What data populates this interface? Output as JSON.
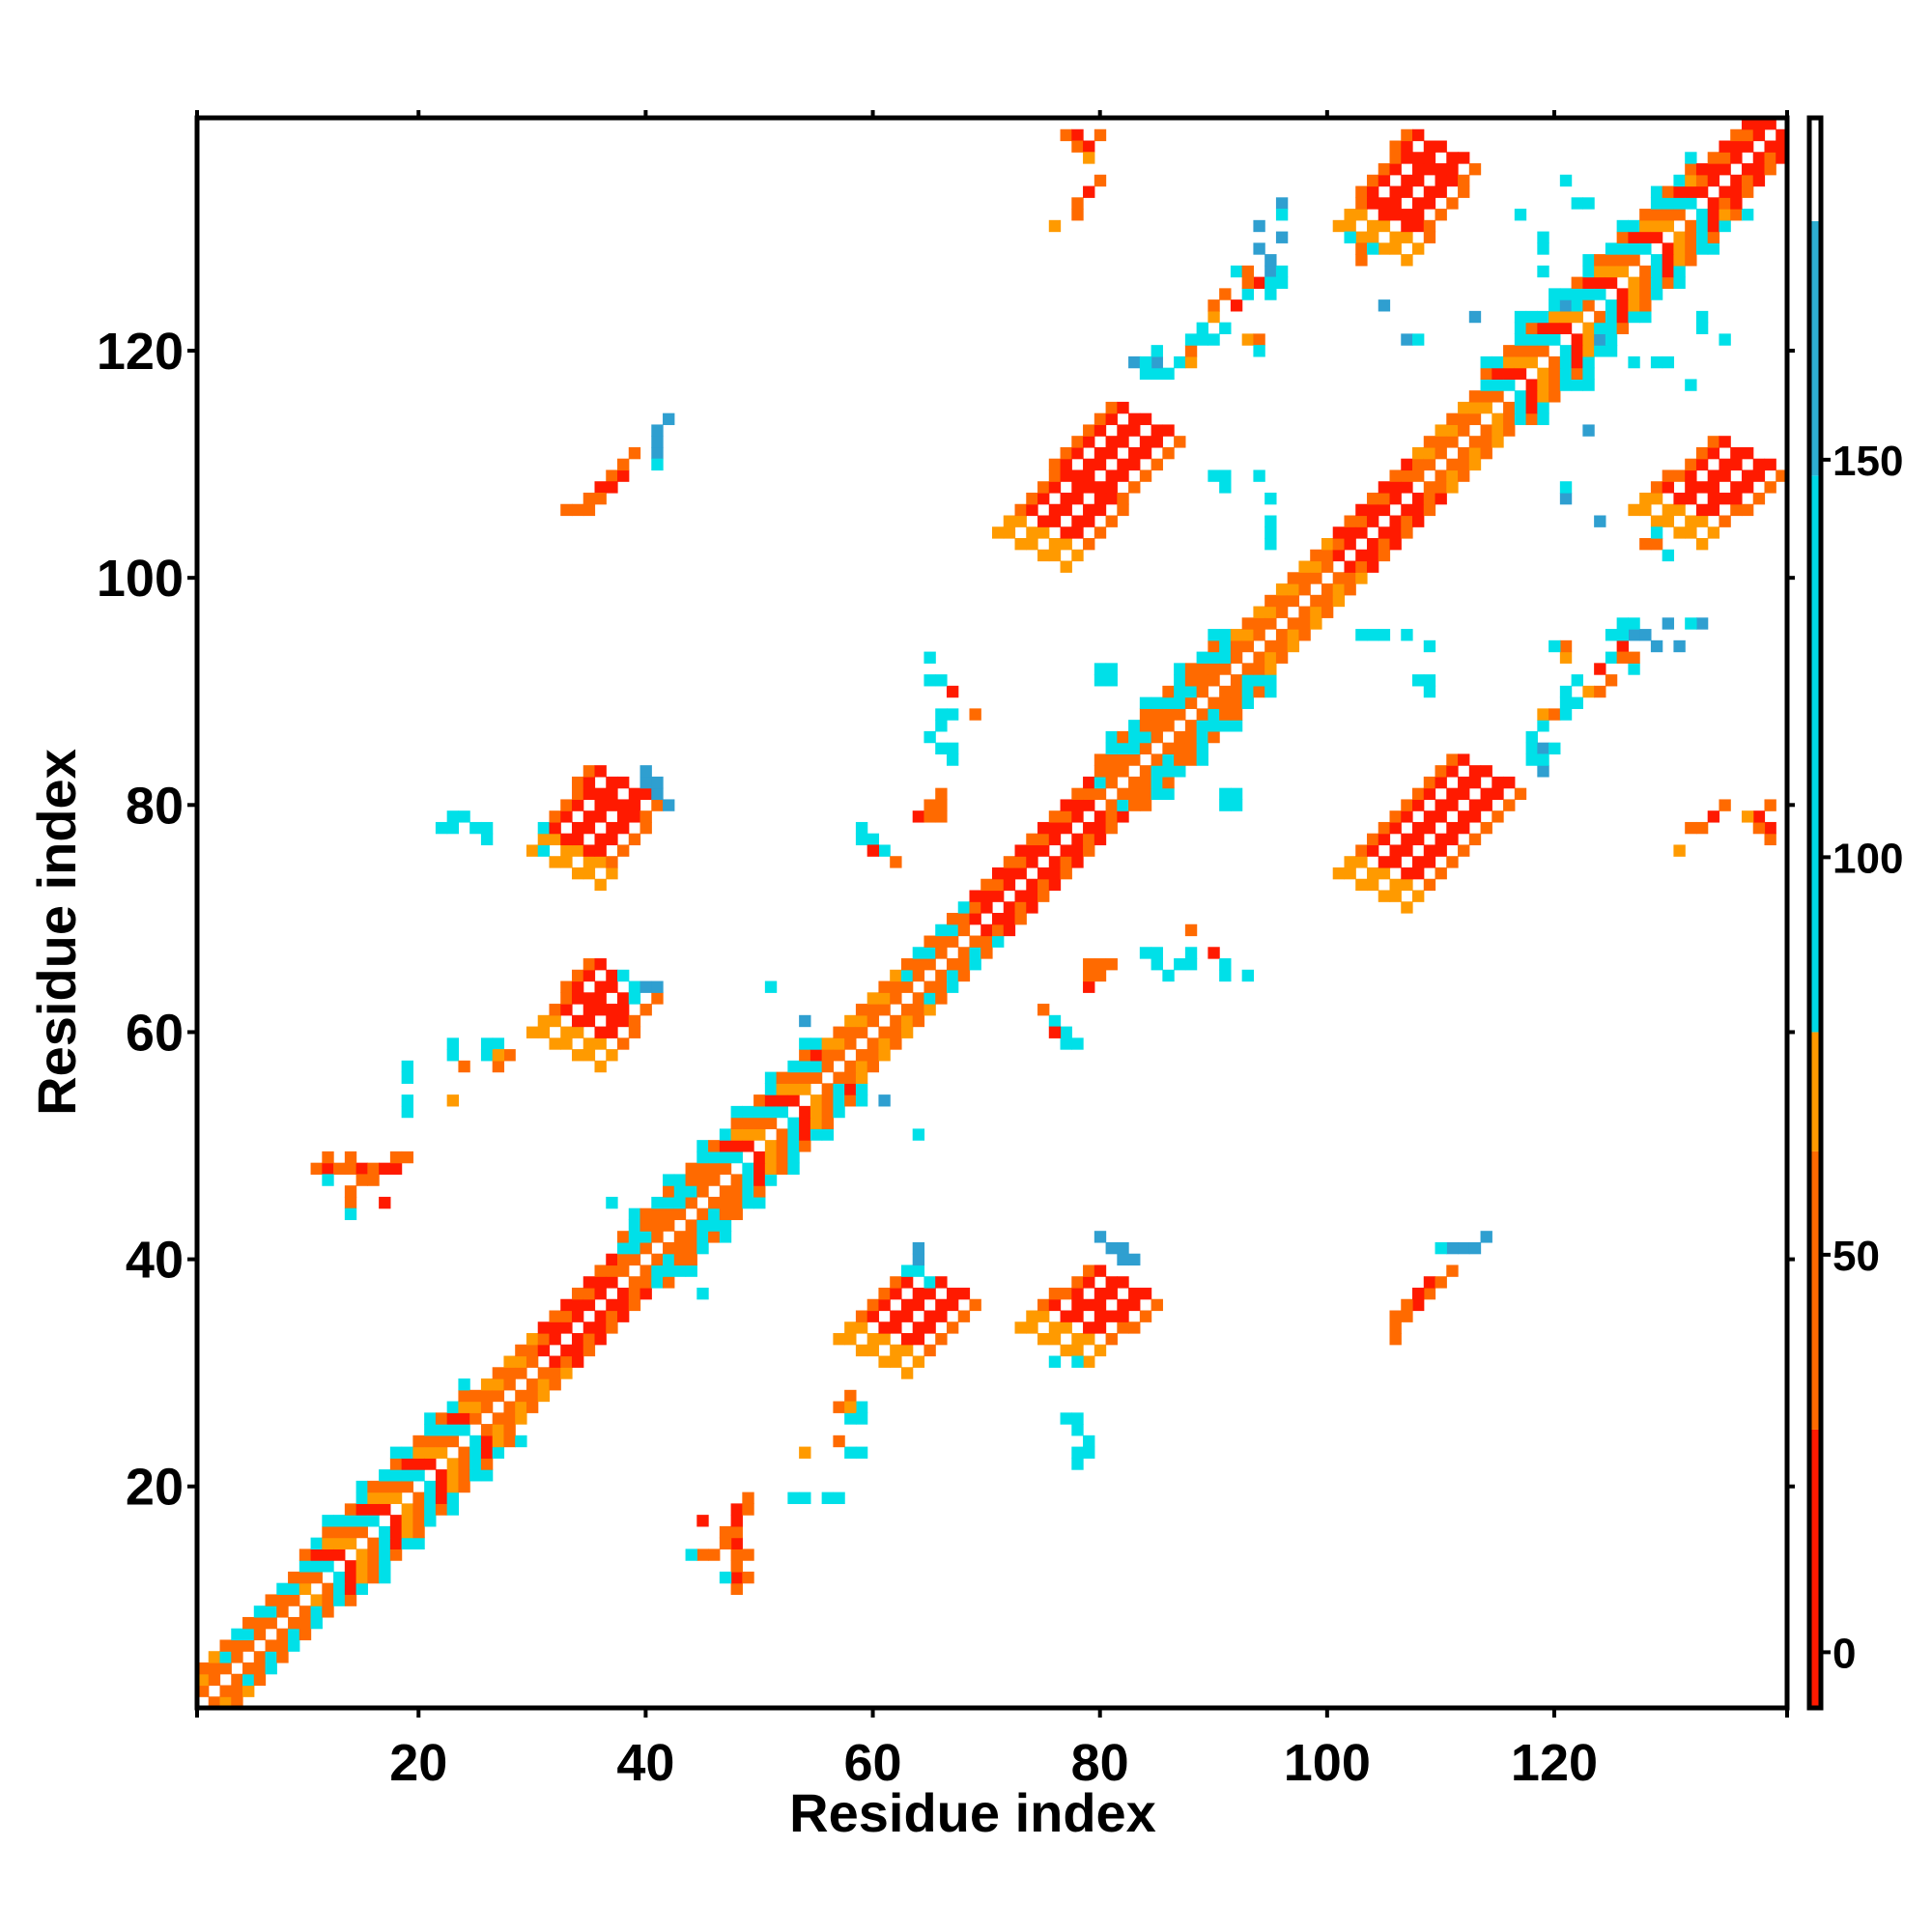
{
  "chart_data": {
    "type": "heatmap",
    "title": "",
    "xlabel": "Residue index",
    "ylabel": "Residue index",
    "xlim": [
      1,
      140
    ],
    "ylim": [
      1,
      140
    ],
    "x_ticks": [
      20,
      40,
      60,
      80,
      100,
      120
    ],
    "y_ticks": [
      20,
      40,
      60,
      80,
      100,
      120
    ],
    "grid": false,
    "diagonal_mirror": true,
    "colorbar": {
      "ticks": [
        0,
        50,
        100,
        150
      ],
      "range": [
        -7,
        193
      ],
      "bands": [
        {
          "from": -7,
          "to": 28,
          "color": "#ff1a00"
        },
        {
          "from": 28,
          "to": 63,
          "color": "#ff6a00"
        },
        {
          "from": 63,
          "to": 78,
          "color": "#ff9a00"
        },
        {
          "from": 78,
          "to": 148,
          "color": "#00d7e6"
        },
        {
          "from": 148,
          "to": 180,
          "color": "#2eaed1"
        },
        {
          "from": 180,
          "to": 193,
          "color": "#ffffff"
        }
      ]
    },
    "color_classes": {
      "red": "#ff1a00",
      "orange": "#ff6a00",
      "amber": "#ff9a00",
      "cyan": "#00e0e8",
      "blue": "#2f9fd0"
    },
    "diagonal_band": {
      "segments": [
        {
          "from": 1,
          "to": 3,
          "pattern": "orange"
        },
        {
          "from": 3,
          "to": 10,
          "pattern": "orange-cyan"
        },
        {
          "from": 10,
          "to": 25,
          "pattern": "mixed"
        },
        {
          "from": 25,
          "to": 31,
          "pattern": "orange"
        },
        {
          "from": 31,
          "to": 38,
          "pattern": "orange-red"
        },
        {
          "from": 38,
          "to": 47,
          "pattern": "cyan-orange"
        },
        {
          "from": 47,
          "to": 56,
          "pattern": "mixed"
        },
        {
          "from": 56,
          "to": 63,
          "pattern": "orange"
        },
        {
          "from": 63,
          "to": 69,
          "pattern": "orange-cyan"
        },
        {
          "from": 69,
          "to": 80,
          "pattern": "orange-red"
        },
        {
          "from": 80,
          "to": 92,
          "pattern": "cyan-orange"
        },
        {
          "from": 92,
          "to": 101,
          "pattern": "orange"
        },
        {
          "from": 101,
          "to": 108,
          "pattern": "orange-red"
        },
        {
          "from": 108,
          "to": 114,
          "pattern": "orange"
        },
        {
          "from": 114,
          "to": 133,
          "pattern": "mixed"
        },
        {
          "from": 133,
          "to": 140,
          "pattern": "orange-red"
        }
      ]
    },
    "patches": [
      {
        "x": 33,
        "y": 75,
        "x2": 38,
        "y2": 82,
        "direction": "parallel",
        "width": 3,
        "start_color": "amber",
        "fill": "red",
        "edge": "orange"
      },
      {
        "x": 33,
        "y": 59,
        "x2": 38,
        "y2": 65,
        "direction": "parallel",
        "width": 3,
        "start_color": "amber",
        "fill": "red",
        "edge": "orange"
      },
      {
        "x": 60,
        "y": 32,
        "x2": 66,
        "y2": 38,
        "direction": "parallel",
        "width": 3,
        "start_color": "amber",
        "fill": "red",
        "edge": "orange"
      },
      {
        "x": 76,
        "y": 33,
        "x2": 82,
        "y2": 38,
        "direction": "parallel",
        "width": 3,
        "start_color": "amber",
        "fill": "red",
        "edge": "orange"
      },
      {
        "x": 74,
        "y": 103,
        "x2": 84,
        "y2": 114,
        "direction": "parallel",
        "width": 3,
        "start_color": "amber",
        "fill": "red",
        "edge": "orange"
      },
      {
        "x": 104,
        "y": 73,
        "x2": 114,
        "y2": 83,
        "direction": "parallel",
        "width": 3,
        "start_color": "amber",
        "fill": "red",
        "edge": "orange"
      },
      {
        "x": 104,
        "y": 130,
        "x2": 110,
        "y2": 138,
        "direction": "parallel",
        "width": 3,
        "start_color": "amber",
        "fill": "red",
        "edge": "orange"
      },
      {
        "x": 130,
        "y": 105,
        "x2": 137,
        "y2": 111,
        "direction": "parallel",
        "width": 3,
        "start_color": "amber",
        "fill": "red",
        "edge": "orange"
      }
    ],
    "cells": [
      [
        11,
        48,
        "orange"
      ],
      [
        12,
        48,
        "red"
      ],
      [
        13,
        48,
        "orange"
      ],
      [
        14,
        48,
        "orange"
      ],
      [
        15,
        48,
        "red"
      ],
      [
        16,
        48,
        "orange"
      ],
      [
        18,
        48,
        "red"
      ],
      [
        19,
        49,
        "orange"
      ],
      [
        14,
        49,
        "orange"
      ],
      [
        16,
        47,
        "orange"
      ],
      [
        14,
        45,
        "orange"
      ],
      [
        17,
        45,
        "red"
      ],
      [
        12,
        47,
        "cyan"
      ],
      [
        14,
        44,
        "cyan"
      ],
      [
        19,
        57,
        "cyan"
      ],
      [
        19,
        54,
        "cyan"
      ],
      [
        19,
        53,
        "cyan"
      ],
      [
        23,
        58,
        "cyan"
      ],
      [
        23,
        59,
        "cyan"
      ],
      [
        24,
        57,
        "orange"
      ],
      [
        23,
        54,
        "amber"
      ],
      [
        26,
        58,
        "cyan"
      ],
      [
        27,
        59,
        "cyan"
      ],
      [
        28,
        58,
        "orange"
      ],
      [
        27,
        57,
        "orange"
      ],
      [
        22,
        78,
        "cyan"
      ],
      [
        23,
        78,
        "cyan"
      ],
      [
        25,
        78,
        "cyan"
      ],
      [
        26,
        77,
        "cyan"
      ],
      [
        31,
        76,
        "cyan"
      ],
      [
        33,
        106,
        "orange"
      ],
      [
        34,
        106,
        "orange"
      ],
      [
        35,
        107,
        "orange"
      ],
      [
        36,
        108,
        "red"
      ],
      [
        37,
        109,
        "orange"
      ],
      [
        41,
        111,
        "blue"
      ],
      [
        41,
        112,
        "blue"
      ],
      [
        41,
        110,
        "cyan"
      ],
      [
        40,
        82,
        "blue"
      ],
      [
        41,
        81,
        "blue"
      ],
      [
        42,
        80,
        "cyan"
      ],
      [
        39,
        64,
        "cyan"
      ],
      [
        40,
        64,
        "blue"
      ],
      [
        41,
        64,
        "blue"
      ],
      [
        38,
        65,
        "cyan"
      ],
      [
        45,
        17,
        "red"
      ],
      [
        48,
        17,
        "red"
      ],
      [
        49,
        18,
        "orange"
      ],
      [
        47,
        15,
        "orange"
      ],
      [
        48,
        14,
        "orange"
      ],
      [
        49,
        14,
        "orange"
      ],
      [
        44,
        14,
        "cyan"
      ],
      [
        46,
        14,
        "orange"
      ],
      [
        47,
        12,
        "cyan"
      ],
      [
        48,
        11,
        "orange"
      ],
      [
        49,
        12,
        "orange"
      ],
      [
        48,
        11,
        "orange"
      ],
      [
        53,
        19,
        "cyan"
      ],
      [
        54,
        19,
        "cyan"
      ],
      [
        56,
        19,
        "cyan"
      ],
      [
        54,
        23,
        "amber"
      ],
      [
        58,
        27,
        "amber"
      ],
      [
        58,
        26,
        "cyan"
      ],
      [
        59,
        26,
        "cyan"
      ],
      [
        57,
        24,
        "orange"
      ],
      [
        58,
        23,
        "cyan"
      ],
      [
        59,
        23,
        "cyan"
      ],
      [
        53,
        52,
        "cyan"
      ],
      [
        61,
        54,
        "blue"
      ],
      [
        64,
        51,
        "cyan"
      ],
      [
        64,
        41,
        "blue"
      ],
      [
        63,
        39,
        "cyan"
      ],
      [
        45,
        37,
        "cyan"
      ],
      [
        41,
        45,
        "cyan"
      ],
      [
        59,
        77,
        "cyan"
      ],
      [
        60,
        77,
        "cyan"
      ],
      [
        61,
        76,
        "orange"
      ],
      [
        62,
        75,
        "orange"
      ],
      [
        64,
        79,
        "orange"
      ],
      [
        65,
        80,
        "orange"
      ],
      [
        65,
        79,
        "orange"
      ],
      [
        66,
        88,
        "cyan"
      ],
      [
        67,
        88,
        "cyan"
      ],
      [
        69,
        88,
        "orange"
      ],
      [
        66,
        85,
        "cyan"
      ],
      [
        67,
        85,
        "cyan"
      ],
      [
        67,
        84,
        "cyan"
      ],
      [
        77,
        139,
        "orange"
      ],
      [
        78,
        139,
        "red"
      ],
      [
        78,
        138,
        "orange"
      ],
      [
        79,
        138,
        "red"
      ],
      [
        80,
        139,
        "orange"
      ],
      [
        79,
        137,
        "amber"
      ],
      [
        76,
        61,
        "cyan"
      ],
      [
        76,
        60,
        "red"
      ],
      [
        77,
        59,
        "cyan"
      ],
      [
        78,
        59,
        "cyan"
      ],
      [
        79,
        64,
        "red"
      ],
      [
        79,
        66,
        "orange"
      ],
      [
        80,
        66,
        "orange"
      ],
      [
        81,
        66,
        "orange"
      ],
      [
        78,
        26,
        "cyan"
      ],
      [
        78,
        25,
        "cyan"
      ],
      [
        79,
        24,
        "cyan"
      ],
      [
        79,
        23,
        "cyan"
      ],
      [
        78,
        31,
        "cyan"
      ],
      [
        80,
        42,
        "blue"
      ],
      [
        81,
        41,
        "blue"
      ],
      [
        82,
        41,
        "blue"
      ],
      [
        83,
        40,
        "blue"
      ],
      [
        80,
        91,
        "cyan"
      ],
      [
        81,
        91,
        "cyan"
      ],
      [
        83,
        119,
        "blue"
      ],
      [
        84,
        118,
        "cyan"
      ],
      [
        85,
        118,
        "cyan"
      ],
      [
        86,
        118,
        "cyan"
      ],
      [
        87,
        119,
        "cyan"
      ],
      [
        89,
        122,
        "cyan"
      ],
      [
        90,
        121,
        "cyan"
      ],
      [
        91,
        122,
        "cyan"
      ],
      [
        88,
        119,
        "cyan"
      ],
      [
        93,
        121,
        "amber"
      ],
      [
        94,
        121,
        "orange"
      ],
      [
        94,
        120,
        "cyan"
      ],
      [
        92,
        127,
        "cyan"
      ],
      [
        93,
        127,
        "orange"
      ],
      [
        94,
        126,
        "red"
      ],
      [
        95,
        127,
        "cyan"
      ],
      [
        96,
        127,
        "cyan"
      ],
      [
        95,
        126,
        "cyan"
      ],
      [
        96,
        133,
        "blue"
      ],
      [
        96,
        132,
        "cyan"
      ],
      [
        86,
        65,
        "cyan"
      ],
      [
        87,
        66,
        "cyan"
      ],
      [
        90,
        67,
        "red"
      ],
      [
        91,
        66,
        "cyan"
      ],
      [
        91,
        65,
        "cyan"
      ],
      [
        93,
        65,
        "cyan"
      ],
      [
        92,
        81,
        "cyan"
      ],
      [
        92,
        80,
        "cyan"
      ],
      [
        91,
        108,
        "cyan"
      ],
      [
        95,
        105,
        "cyan"
      ],
      [
        95,
        103,
        "cyan"
      ],
      [
        104,
        95,
        "cyan"
      ],
      [
        107,
        95,
        "cyan"
      ],
      [
        109,
        94,
        "cyan"
      ],
      [
        109,
        91,
        "cyan"
      ],
      [
        109,
        90,
        "cyan"
      ],
      [
        106,
        35,
        "orange"
      ],
      [
        107,
        36,
        "orange"
      ],
      [
        108,
        37,
        "red"
      ],
      [
        109,
        38,
        "red"
      ],
      [
        110,
        38,
        "orange"
      ],
      [
        111,
        39,
        "orange"
      ],
      [
        112,
        41,
        "blue"
      ],
      [
        113,
        41,
        "blue"
      ],
      [
        114,
        42,
        "blue"
      ],
      [
        113,
        123,
        "blue"
      ],
      [
        117,
        123,
        "cyan"
      ],
      [
        118,
        123,
        "cyan"
      ],
      [
        120,
        124,
        "cyan"
      ],
      [
        121,
        124,
        "blue"
      ],
      [
        122,
        124,
        "cyan"
      ],
      [
        122,
        133,
        "cyan"
      ],
      [
        123,
        133,
        "cyan"
      ],
      [
        121,
        135,
        "cyan"
      ],
      [
        121,
        107,
        "blue"
      ],
      [
        121,
        108,
        "cyan"
      ],
      [
        118,
        86,
        "cyan"
      ],
      [
        119,
        85,
        "blue"
      ],
      [
        119,
        84,
        "cyan"
      ],
      [
        120,
        85,
        "cyan"
      ],
      [
        119,
        88,
        "amber"
      ],
      [
        120,
        88,
        "orange"
      ],
      [
        121,
        88,
        "cyan"
      ],
      [
        121,
        89,
        "cyan"
      ],
      [
        123,
        90,
        "amber"
      ],
      [
        124,
        90,
        "orange"
      ],
      [
        124,
        92,
        "red"
      ],
      [
        125,
        91,
        "orange"
      ],
      [
        125,
        93,
        "cyan"
      ],
      [
        126,
        93,
        "orange"
      ],
      [
        125,
        95,
        "cyan"
      ],
      [
        127,
        95,
        "blue"
      ],
      [
        128,
        95,
        "blue"
      ],
      [
        129,
        94,
        "blue"
      ],
      [
        130,
        96,
        "blue"
      ],
      [
        131,
        94,
        "blue"
      ],
      [
        126,
        96,
        "cyan"
      ],
      [
        131,
        76,
        "amber"
      ],
      [
        132,
        78,
        "orange"
      ],
      [
        133,
        78,
        "orange"
      ],
      [
        134,
        79,
        "red"
      ],
      [
        135,
        80,
        "orange"
      ],
      [
        127,
        119,
        "cyan"
      ],
      [
        129,
        119,
        "cyan"
      ],
      [
        130,
        119,
        "cyan"
      ],
      [
        132,
        117,
        "cyan"
      ],
      [
        124,
        105,
        "blue"
      ],
      [
        128,
        103,
        "orange"
      ],
      [
        129,
        103,
        "orange"
      ],
      [
        129,
        104,
        "cyan"
      ],
      [
        130,
        102,
        "cyan"
      ]
    ]
  }
}
